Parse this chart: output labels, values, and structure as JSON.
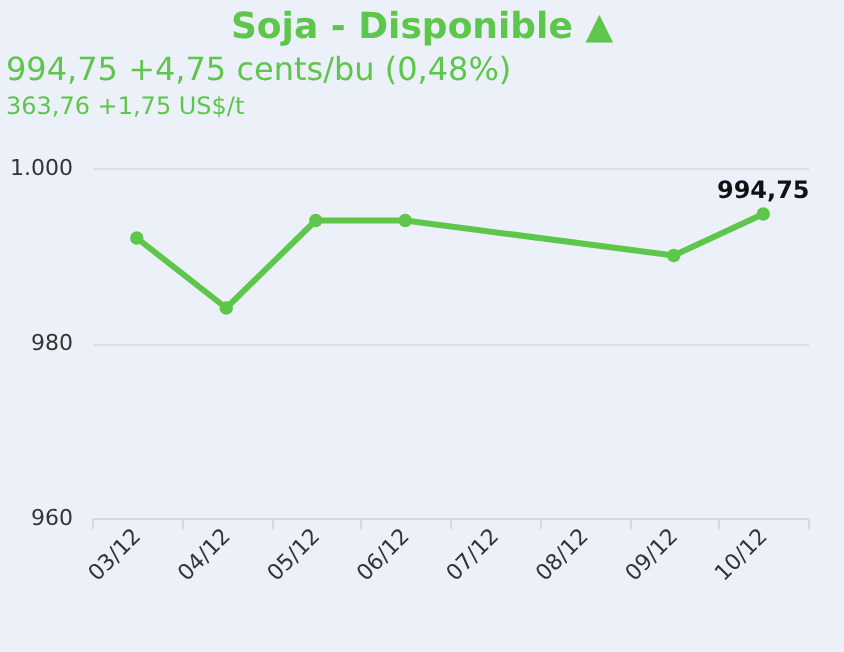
{
  "chart_data": {
    "type": "line",
    "title": "Soja - Disponible ▲",
    "subtitle": "994,75 +4,75 cents/bu (0,48%)",
    "annotations": [
      "363,76 +1,75 US$/t"
    ],
    "categories": [
      "03/12",
      "04/12",
      "05/12",
      "06/12",
      "07/12",
      "08/12",
      "09/12",
      "10/12"
    ],
    "series": [
      {
        "color": "#5ec64a",
        "values": [
          992,
          984,
          994,
          994,
          null,
          null,
          990,
          994.75
        ],
        "value_labels": [
          null,
          null,
          null,
          null,
          null,
          null,
          null,
          "994,75"
        ]
      }
    ],
    "ylim": [
      960,
      1000
    ],
    "yticks": [
      960,
      980,
      {
        "value": 1000,
        "label": "1.000"
      }
    ],
    "grid": "y",
    "marker": "circle",
    "line_style": "solid"
  }
}
